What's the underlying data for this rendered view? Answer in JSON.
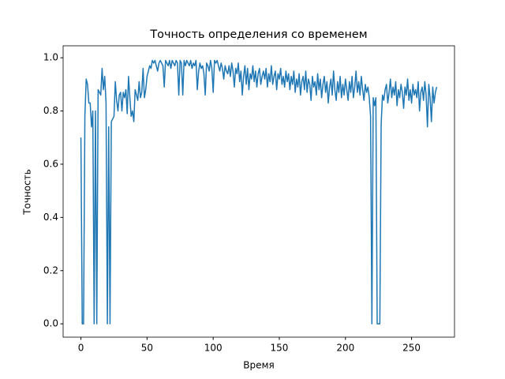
{
  "chart_data": {
    "type": "line",
    "title": "Точность определения со временем",
    "x_label": "Время",
    "y_label": "Точность",
    "color": "#1f77b4",
    "x": [
      0,
      1,
      2,
      3,
      4,
      5,
      6,
      7,
      8,
      9,
      10,
      11,
      12,
      13,
      14,
      15,
      16,
      17,
      18,
      19,
      20,
      21,
      22,
      23,
      24,
      25,
      26,
      27,
      28,
      29,
      30,
      31,
      32,
      33,
      34,
      35,
      36,
      37,
      38,
      39,
      40,
      41,
      42,
      43,
      44,
      45,
      46,
      47,
      48,
      49,
      50,
      51,
      52,
      53,
      54,
      55,
      56,
      57,
      58,
      59,
      60,
      61,
      62,
      63,
      64,
      65,
      66,
      67,
      68,
      69,
      70,
      71,
      72,
      73,
      74,
      75,
      76,
      77,
      78,
      79,
      80,
      81,
      82,
      83,
      84,
      85,
      86,
      87,
      88,
      89,
      90,
      91,
      92,
      93,
      94,
      95,
      96,
      97,
      98,
      99,
      100,
      101,
      102,
      103,
      104,
      105,
      106,
      107,
      108,
      109,
      110,
      111,
      112,
      113,
      114,
      115,
      116,
      117,
      118,
      119,
      120,
      121,
      122,
      123,
      124,
      125,
      126,
      127,
      128,
      129,
      130,
      131,
      132,
      133,
      134,
      135,
      136,
      137,
      138,
      139,
      140,
      141,
      142,
      143,
      144,
      145,
      146,
      147,
      148,
      149,
      150,
      151,
      152,
      153,
      154,
      155,
      156,
      157,
      158,
      159,
      160,
      161,
      162,
      163,
      164,
      165,
      166,
      167,
      168,
      169,
      170,
      171,
      172,
      173,
      174,
      175,
      176,
      177,
      178,
      179,
      180,
      181,
      182,
      183,
      184,
      185,
      186,
      187,
      188,
      189,
      190,
      191,
      192,
      193,
      194,
      195,
      196,
      197,
      198,
      199,
      200,
      201,
      202,
      203,
      204,
      205,
      206,
      207,
      208,
      209,
      210,
      211,
      212,
      213,
      214,
      215,
      216,
      217,
      218,
      219,
      220,
      221,
      222,
      223,
      224,
      225,
      226,
      227,
      228,
      229,
      230,
      231,
      232,
      233,
      234,
      235,
      236,
      237,
      238,
      239,
      240,
      241,
      242,
      243,
      244,
      245,
      246,
      247,
      248,
      249,
      250,
      251,
      252,
      253,
      254,
      255,
      256,
      257,
      258,
      259,
      260,
      261,
      262,
      263,
      264,
      265,
      266,
      267,
      268,
      269
    ],
    "values": [
      0.7,
      0.0,
      0.0,
      0.78,
      0.92,
      0.9,
      0.83,
      0.83,
      0.74,
      0.8,
      0.0,
      0.8,
      0.0,
      0.88,
      0.87,
      0.86,
      0.96,
      0.88,
      0.93,
      0.83,
      0.0,
      0.74,
      0.0,
      0.76,
      0.77,
      0.78,
      0.91,
      0.84,
      0.8,
      0.86,
      0.87,
      0.8,
      0.87,
      0.85,
      0.88,
      0.79,
      0.93,
      0.85,
      0.78,
      0.8,
      0.76,
      0.88,
      0.86,
      0.84,
      0.91,
      0.85,
      0.87,
      0.96,
      0.85,
      0.88,
      0.93,
      0.95,
      0.97,
      0.96,
      0.99,
      0.98,
      0.99,
      0.97,
      0.95,
      0.98,
      0.99,
      0.98,
      0.97,
      0.89,
      0.99,
      0.98,
      0.97,
      0.99,
      0.96,
      0.99,
      0.98,
      0.97,
      0.99,
      0.98,
      0.86,
      0.99,
      0.98,
      0.86,
      0.99,
      0.97,
      0.99,
      0.98,
      0.97,
      0.99,
      0.96,
      0.98,
      0.97,
      0.99,
      0.88,
      0.95,
      0.98,
      0.96,
      0.97,
      0.94,
      0.86,
      0.98,
      0.97,
      0.95,
      0.99,
      0.96,
      0.87,
      0.99,
      0.98,
      0.99,
      0.97,
      0.95,
      0.98,
      0.96,
      0.92,
      0.97,
      0.95,
      0.94,
      0.97,
      0.93,
      0.98,
      0.95,
      0.89,
      0.96,
      0.94,
      0.98,
      0.91,
      0.95,
      0.86,
      0.93,
      0.97,
      0.9,
      0.96,
      0.88,
      0.94,
      0.92,
      0.97,
      0.91,
      0.95,
      0.89,
      0.94,
      0.96,
      0.9,
      0.93,
      0.95,
      0.92,
      0.96,
      0.89,
      0.94,
      0.91,
      0.97,
      0.9,
      0.93,
      0.95,
      0.88,
      0.94,
      0.92,
      0.96,
      0.9,
      0.93,
      0.89,
      0.95,
      0.91,
      0.94,
      0.88,
      0.93,
      0.9,
      0.95,
      0.87,
      0.92,
      0.89,
      0.94,
      0.86,
      0.91,
      0.93,
      0.88,
      0.95,
      0.87,
      0.92,
      0.9,
      0.84,
      0.93,
      0.89,
      0.91,
      0.86,
      0.94,
      0.88,
      0.92,
      0.85,
      0.9,
      0.93,
      0.87,
      0.91,
      0.83,
      0.89,
      0.92,
      0.86,
      0.95,
      0.88,
      0.84,
      0.91,
      0.87,
      0.93,
      0.85,
      0.9,
      0.86,
      0.92,
      0.88,
      0.84,
      0.91,
      0.87,
      0.93,
      0.85,
      0.89,
      0.95,
      0.87,
      0.91,
      0.86,
      0.93,
      0.88,
      0.84,
      0.9,
      0.87,
      0.89,
      0.85,
      0.78,
      0.0,
      0.85,
      0.82,
      0.85,
      0.0,
      0.0,
      0.0,
      0.75,
      0.86,
      0.84,
      0.88,
      0.9,
      0.83,
      0.87,
      0.92,
      0.85,
      0.89,
      0.86,
      0.91,
      0.82,
      0.88,
      0.85,
      0.9,
      0.87,
      0.81,
      0.89,
      0.86,
      0.92,
      0.84,
      0.88,
      0.83,
      0.9,
      0.86,
      0.88,
      0.85,
      0.91,
      0.8,
      0.87,
      0.89,
      0.84,
      0.91,
      0.86,
      0.74,
      0.9,
      0.85,
      0.76,
      0.89,
      0.83,
      0.87,
      0.89
    ],
    "xlim": [
      -13.45,
      282.45
    ],
    "xticks": [
      0,
      50,
      100,
      150,
      200,
      250
    ],
    "ylim": [
      -0.05,
      1.045
    ],
    "yticks": [
      {
        "value": 0,
        "label": "0.0"
      },
      0.2,
      0.4,
      0.6,
      0.8,
      {
        "value": 1,
        "label": "1.0"
      }
    ]
  }
}
